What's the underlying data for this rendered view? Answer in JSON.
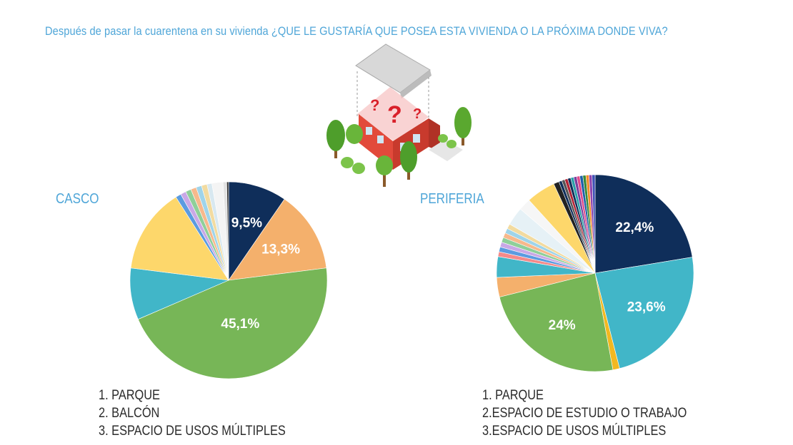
{
  "title": "Después de pasar la cuarentena en su vivienda ¿QUE LE GUSTARÍA QUE POSEA ESTA VIVIENDA O LA PRÓXIMA DONDE VIVA?",
  "illustration": "house-with-question-marks-icon",
  "chart_data": [
    {
      "type": "pie",
      "title": "CASCO",
      "slices": [
        {
          "value": 9.5,
          "label": "9,5%",
          "color": "#0f2e5a"
        },
        {
          "value": 13.3,
          "label": "13,3%",
          "color": "#f4b06c"
        },
        {
          "value": 45.1,
          "label": "45,1%",
          "color": "#77b657"
        },
        {
          "value": 8.4,
          "label": "",
          "color": "#41b6c8"
        },
        {
          "value": 13.9,
          "label": "",
          "color": "#fdd76b"
        },
        {
          "value": 0.9,
          "label": "",
          "color": "#5b9be0"
        },
        {
          "value": 0.9,
          "label": "",
          "color": "#c9a8e6"
        },
        {
          "value": 0.9,
          "label": "",
          "color": "#8fcf9a"
        },
        {
          "value": 0.9,
          "label": "",
          "color": "#f7b98c"
        },
        {
          "value": 0.9,
          "label": "",
          "color": "#9fd4ea"
        },
        {
          "value": 0.9,
          "label": "",
          "color": "#f2dba0"
        },
        {
          "value": 0.8,
          "label": "",
          "color": "#d8e8f0"
        },
        {
          "value": 1.8,
          "label": "",
          "color": "#f4f4f4"
        },
        {
          "value": 0.6,
          "label": "",
          "color": "#e2e2e2"
        },
        {
          "value": 0.3,
          "label": "",
          "color": "#333333"
        }
      ],
      "legend": [
        "1. PARQUE",
        "2. BALCÓN",
        "3. ESPACIO DE USOS MÚLTIPLES"
      ]
    },
    {
      "type": "pie",
      "title": "PERIFERIA",
      "slices": [
        {
          "value": 22.4,
          "label": "22,4%",
          "color": "#0f2e5a"
        },
        {
          "value": 23.6,
          "label": "23,6%",
          "color": "#41b6c8"
        },
        {
          "value": 1.1,
          "label": "",
          "color": "#f2b820"
        },
        {
          "value": 24.0,
          "label": "24%",
          "color": "#77b657"
        },
        {
          "value": 3.2,
          "label": "",
          "color": "#f4b06c"
        },
        {
          "value": 3.4,
          "label": "",
          "color": "#41b6c8"
        },
        {
          "value": 0.8,
          "label": "",
          "color": "#f48a8a"
        },
        {
          "value": 0.8,
          "label": "",
          "color": "#5b9be0"
        },
        {
          "value": 0.8,
          "label": "",
          "color": "#c9a8e6"
        },
        {
          "value": 0.8,
          "label": "",
          "color": "#8fcf9a"
        },
        {
          "value": 0.8,
          "label": "",
          "color": "#f7b98c"
        },
        {
          "value": 0.8,
          "label": "",
          "color": "#9fd4ea"
        },
        {
          "value": 0.8,
          "label": "",
          "color": "#f2dba0"
        },
        {
          "value": 3.0,
          "label": "",
          "color": "#e6f1f6"
        },
        {
          "value": 2.0,
          "label": "",
          "color": "#f6f6f6"
        },
        {
          "value": 4.8,
          "label": "",
          "color": "#fdd76b"
        },
        {
          "value": 0.9,
          "label": "",
          "color": "#222222"
        },
        {
          "value": 0.5,
          "label": "",
          "color": "#0f2e5a"
        },
        {
          "value": 0.5,
          "label": "",
          "color": "#555555"
        },
        {
          "value": 0.5,
          "label": "",
          "color": "#b22234"
        },
        {
          "value": 0.5,
          "label": "",
          "color": "#0f2e5a"
        },
        {
          "value": 0.5,
          "label": "",
          "color": "#2aa0a8"
        },
        {
          "value": 0.5,
          "label": "",
          "color": "#7a3e9d"
        },
        {
          "value": 0.5,
          "label": "",
          "color": "#e04a8a"
        },
        {
          "value": 0.5,
          "label": "",
          "color": "#1c5fa8"
        },
        {
          "value": 0.5,
          "label": "",
          "color": "#3a8a3a"
        },
        {
          "value": 0.5,
          "label": "",
          "color": "#f28c28"
        },
        {
          "value": 0.5,
          "label": "",
          "color": "#8e44ad"
        },
        {
          "value": 0.5,
          "label": "",
          "color": "#3f51b5"
        }
      ],
      "legend": [
        "1. PARQUE",
        "2.ESPACIO DE ESTUDIO O TRABAJO",
        "3.ESPACIO DE USOS MÚLTIPLES"
      ]
    }
  ]
}
